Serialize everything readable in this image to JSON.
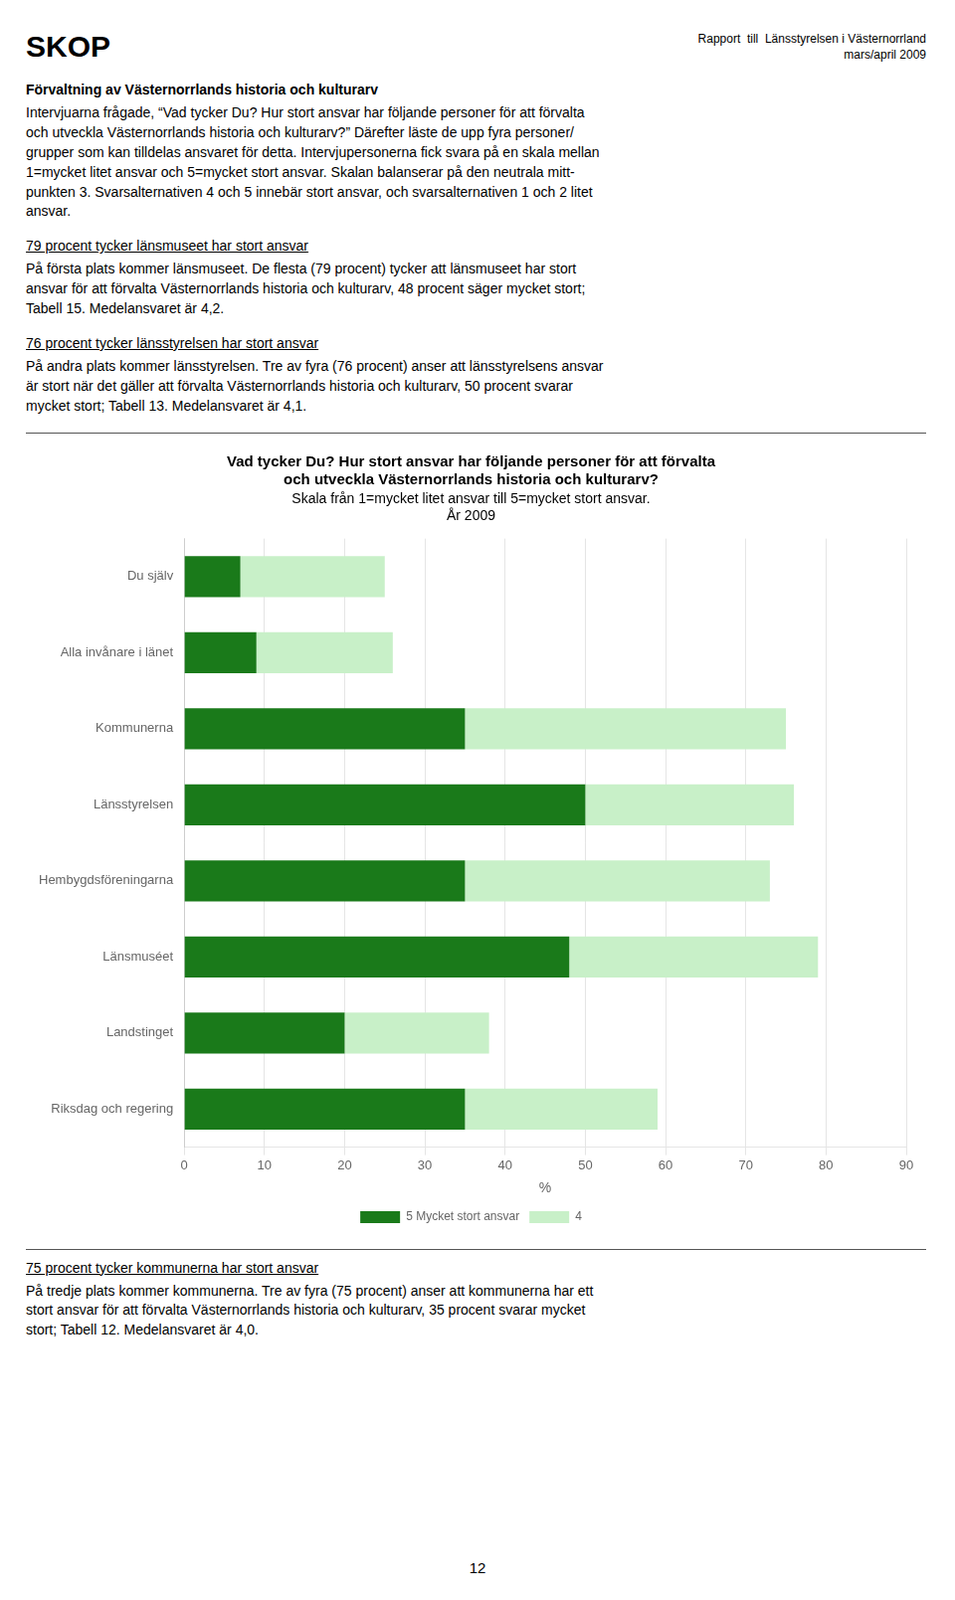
{
  "chart_data": {
    "type": "bar",
    "orientation": "horizontal",
    "stacked": true,
    "title": [
      "Vad tycker Du? Hur stort ansvar har följande personer för att förvalta",
      "och utveckla Västernorrlands historia och kulturarv?"
    ],
    "subtitle": [
      "Skala från 1=mycket litet ansvar till 5=mycket stort ansvar.",
      "År 2009"
    ],
    "categories": [
      "Du själv",
      "Alla invånare i länet",
      "Kommunerna",
      "Länsstyrelsen",
      "Hembygdsföreningarna",
      "Länsmuséet",
      "Landstinget",
      "Riksdag och regering"
    ],
    "series": [
      {
        "name": "5 Mycket stort ansvar",
        "color": "#1a7a1a",
        "values": [
          7,
          9,
          35,
          50,
          35,
          48,
          20,
          35
        ]
      },
      {
        "name": "4",
        "color": "#c8f0c8",
        "values": [
          18,
          17,
          40,
          26,
          38,
          31,
          18,
          24
        ]
      }
    ],
    "xlabel": "%",
    "xlim": [
      0,
      90
    ],
    "xticks": [
      0,
      10,
      20,
      30,
      40,
      50,
      60,
      70,
      80,
      90
    ],
    "grid": true,
    "legend": "bottom"
  },
  "page_text": {
    "header": "SKOP",
    "header_right": [
      "Rapport  till  Länsstyrelsen i Västernorrland",
      "mars/april 2009"
    ],
    "intro_heading": "Förvaltning av Västernorrlands historia och kulturarv",
    "intro": "Intervjuarna frågade, “Vad tycker Du? Hur stort ansvar har följande personer för att förvalta\noch utveckla Västernorrlands historia och kulturarv?” Därefter läste de upp fyra personer/\ngrupper som kan tilldelas ansvaret för detta. Intervjupersonerna fick svara på en skala mellan\n1=mycket litet ansvar och 5=mycket stort ansvar. Skalan balanserar på den neutrala mitt-\npunkten 3. Svarsalternativen 4 och 5 innebär stort ansvar, och svarsalternativen 1 och 2 litet\nansvar.",
    "sections_before": [
      {
        "heading": "79 procent tycker länsmuseet har stort ansvar",
        "body": "På första plats kommer länsmuseet. De flesta (79 procent) tycker att länsmuseet har stort\nansvar för att förvalta Västernorrlands historia och kulturarv, 48 procent säger mycket stort;\nTabell 15. Medelansvaret är 4,2."
      },
      {
        "heading": "76 procent tycker länsstyrelsen har stort ansvar",
        "body": "På andra plats kommer länsstyrelsen. Tre av fyra (76 procent) anser att länsstyrelsens ansvar\när stort när det gäller att förvalta Västernorrlands historia och kulturarv, 50 procent svarar\nmycket stort; Tabell 13. Medelansvaret är 4,1."
      }
    ],
    "sections_after": [
      {
        "heading": "75 procent tycker kommunerna har stort ansvar",
        "body": "På tredje plats kommer kommunerna. Tre av fyra (75 procent) anser att kommunerna har ett\nstort ansvar för att förvalta Västernorrlands historia och kulturarv, 35 procent svarar mycket\nstort; Tabell 12. Medelansvaret är 4,0."
      }
    ],
    "page_number": "12"
  }
}
